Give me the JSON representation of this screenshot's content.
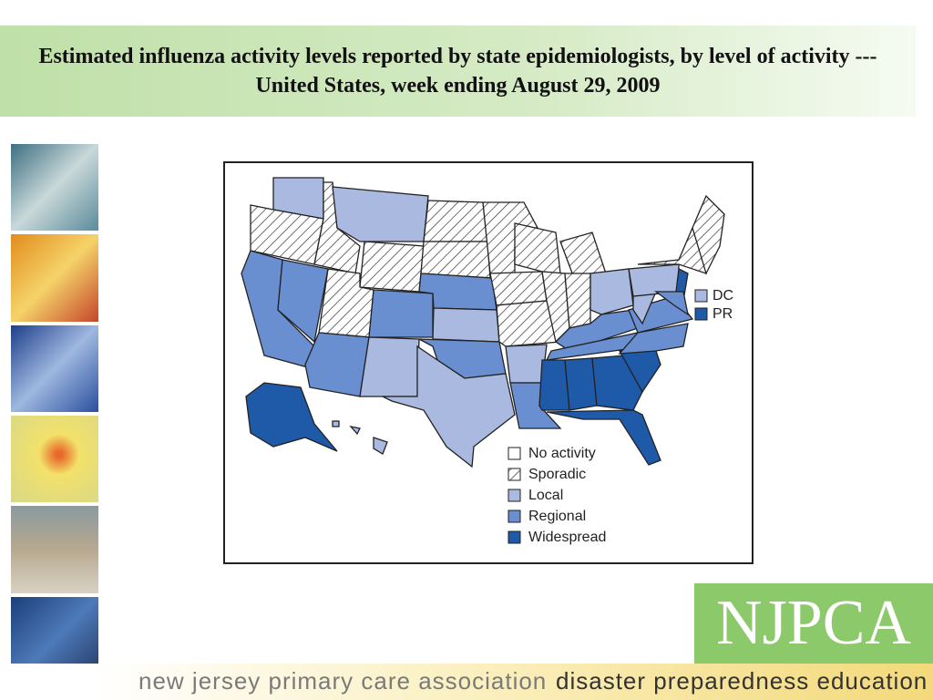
{
  "header": {
    "title": "Estimated influenza activity levels reported by state epidemiologists, by level of activity --- United States, week ending August 29, 2009"
  },
  "map": {
    "insets": [
      "DC",
      "PR"
    ],
    "legend": [
      "No activity",
      "Sporadic",
      "Local",
      "Regional",
      "Widespread"
    ]
  },
  "footer": {
    "logo": "NJPCA",
    "organization": "new jersey primary care association",
    "program": "disaster preparedness education"
  }
}
